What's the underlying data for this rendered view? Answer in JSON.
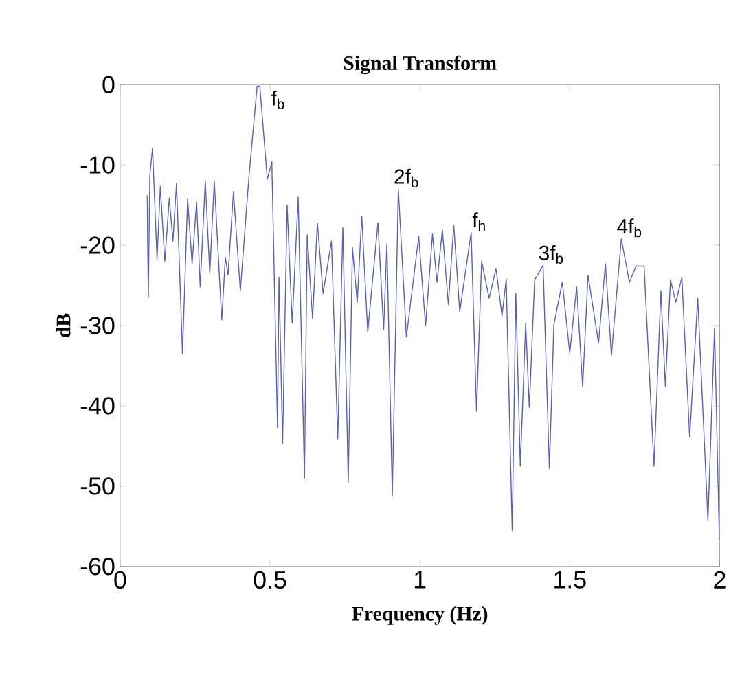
{
  "chart_data": {
    "type": "line",
    "title": "Signal Transform",
    "xlabel": "Frequency (Hz)",
    "ylabel": "dB",
    "xlim": [
      0,
      2
    ],
    "ylim": [
      -60,
      0
    ],
    "xticks": [
      0,
      0.5,
      1,
      1.5,
      2
    ],
    "yticks": [
      -60,
      -50,
      -40,
      -30,
      -20,
      -10,
      0
    ],
    "grid": false,
    "marker": "none",
    "line_style": "solid",
    "annotations": [
      {
        "text": "f$_{b}$",
        "x": 0.466,
        "y": -0.2
      },
      {
        "text": "2f$_{b}$",
        "x": 0.928,
        "y": -13
      },
      {
        "text": "f$_{h}$",
        "x": 1.171,
        "y": -18.4
      },
      {
        "text": "3f$_{b}$",
        "x": 1.411,
        "y": -22.5
      },
      {
        "text": "4f$_{b}$",
        "x": 1.672,
        "y": -19.2
      }
    ],
    "series": [
      {
        "color": "#5a5fb0",
        "x": [
          0.09,
          0.094,
          0.099,
          0.108,
          0.123,
          0.134,
          0.149,
          0.164,
          0.176,
          0.188,
          0.208,
          0.225,
          0.24,
          0.255,
          0.267,
          0.284,
          0.299,
          0.314,
          0.339,
          0.351,
          0.36,
          0.378,
          0.401,
          0.43,
          0.457,
          0.466,
          0.491,
          0.506,
          0.525,
          0.53,
          0.542,
          0.557,
          0.574,
          0.594,
          0.615,
          0.624,
          0.642,
          0.658,
          0.677,
          0.705,
          0.726,
          0.743,
          0.761,
          0.775,
          0.791,
          0.806,
          0.826,
          0.86,
          0.879,
          0.89,
          0.908,
          0.928,
          0.955,
          0.996,
          1.019,
          1.042,
          1.057,
          1.075,
          1.095,
          1.113,
          1.133,
          1.171,
          1.189,
          1.206,
          1.231,
          1.254,
          1.274,
          1.288,
          1.308,
          1.32,
          1.335,
          1.353,
          1.365,
          1.383,
          1.411,
          1.432,
          1.447,
          1.475,
          1.5,
          1.523,
          1.543,
          1.561,
          1.596,
          1.619,
          1.639,
          1.672,
          1.699,
          1.721,
          1.748,
          1.781,
          1.804,
          1.819,
          1.836,
          1.854,
          1.874,
          1.9,
          1.927,
          1.961,
          1.983,
          1.999
        ],
        "values": [
          -13.8,
          -26.5,
          -11.3,
          -7.9,
          -21.8,
          -12.7,
          -22,
          -14.1,
          -19.5,
          -12.3,
          -33.5,
          -14.2,
          -22.3,
          -14.6,
          -25.2,
          -12,
          -23.5,
          -12,
          -29.3,
          -21.5,
          -23.7,
          -13.3,
          -25.7,
          -11.3,
          -0.2,
          -0.2,
          -11.8,
          -9.6,
          -42.7,
          -24,
          -44.7,
          -15,
          -29.7,
          -14,
          -49,
          -18.7,
          -29.1,
          -17.2,
          -26,
          -19.5,
          -44.1,
          -17.8,
          -49.5,
          -20.3,
          -27.1,
          -16.4,
          -30.8,
          -17.2,
          -30.5,
          -19.8,
          -51.2,
          -13,
          -31.4,
          -18.9,
          -30,
          -18.6,
          -24.6,
          -18.1,
          -27.4,
          -17.5,
          -28.3,
          -18.4,
          -40.7,
          -22,
          -26.6,
          -22.9,
          -28.8,
          -24.2,
          -55.5,
          -26,
          -47.5,
          -29.7,
          -40.2,
          -24.3,
          -22.5,
          -47.8,
          -29.9,
          -24.6,
          -33.4,
          -25.2,
          -37.6,
          -23.7,
          -32.2,
          -22.3,
          -33.7,
          -19.2,
          -24.6,
          -22.6,
          -22.6,
          -47.5,
          -25.7,
          -37.6,
          -24.3,
          -27.1,
          -24,
          -43.9,
          -26.6,
          -54.3,
          -30.3,
          -56.6
        ]
      }
    ]
  }
}
